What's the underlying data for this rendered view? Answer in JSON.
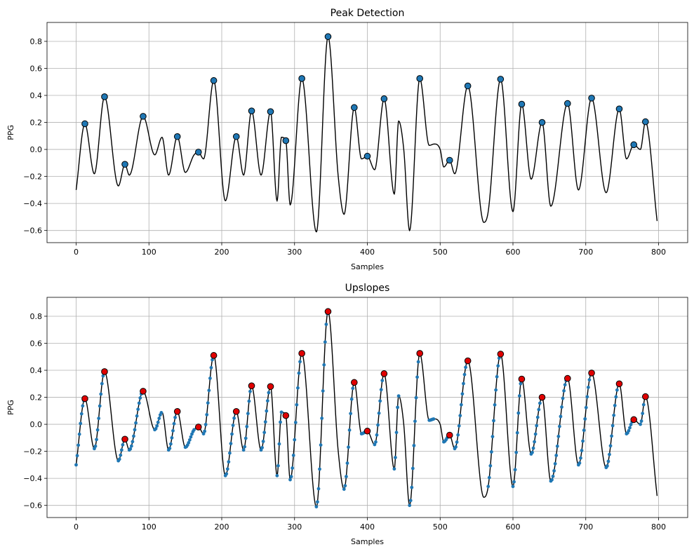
{
  "chart_data": [
    {
      "type": "line",
      "title": "Peak Detection",
      "xlabel": "Samples",
      "ylabel": "PPG",
      "xlim": [
        -40,
        840
      ],
      "ylim": [
        -0.69,
        0.94
      ],
      "xticks": [
        0,
        100,
        200,
        300,
        400,
        500,
        600,
        700,
        800
      ],
      "xtick_labels": [
        "0",
        "100",
        "200",
        "300",
        "400",
        "500",
        "600",
        "700",
        "800"
      ],
      "yticks": [
        0.8,
        0.6,
        0.4,
        0.2,
        0.0,
        -0.2,
        -0.4,
        -0.6
      ],
      "ytick_labels": [
        "0.8",
        "0.6",
        "0.4",
        "0.2",
        "0.0",
        "−0.2",
        "−0.4",
        "−0.6"
      ],
      "grid": true,
      "series": [
        {
          "role": "signal",
          "color": "#000000",
          "x": [
            0,
            12,
            25,
            39,
            58,
            67,
            73,
            92,
            108,
            118,
            127,
            139,
            150,
            162,
            168,
            175,
            189,
            205,
            220,
            230,
            241,
            254,
            267,
            276,
            282,
            288,
            294,
            310,
            330,
            346,
            360,
            368,
            382,
            392,
            400,
            410,
            423,
            437,
            443,
            450,
            458,
            472,
            485,
            492,
            500,
            505,
            513,
            520,
            538,
            560,
            566,
            583,
            600,
            612,
            625,
            640,
            652,
            675,
            690,
            708,
            728,
            746,
            756,
            766,
            775,
            782,
            798
          ],
          "y": [
            -0.3,
            0.19,
            -0.18,
            0.39,
            -0.27,
            -0.11,
            -0.19,
            0.245,
            -0.04,
            0.09,
            -0.19,
            0.095,
            -0.17,
            -0.04,
            -0.02,
            -0.07,
            0.51,
            -0.38,
            0.095,
            -0.19,
            0.285,
            -0.19,
            0.28,
            -0.38,
            0.09,
            0.065,
            -0.41,
            0.525,
            -0.61,
            0.835,
            -0.2,
            -0.48,
            0.31,
            -0.07,
            -0.05,
            -0.15,
            0.375,
            -0.33,
            0.21,
            0.0,
            -0.6,
            0.525,
            0.03,
            0.04,
            0.0,
            -0.13,
            -0.08,
            -0.18,
            0.47,
            -0.54,
            -0.46,
            0.52,
            -0.46,
            0.335,
            -0.22,
            0.2,
            -0.42,
            0.34,
            -0.3,
            0.38,
            -0.32,
            0.3,
            -0.07,
            0.035,
            0.0,
            0.205,
            -0.53
          ]
        },
        {
          "role": "peaks",
          "color": "#1f77b4",
          "x": [
            12,
            39,
            67,
            92,
            139,
            168,
            189,
            220,
            241,
            267,
            288,
            310,
            346,
            382,
            400,
            423,
            472,
            513,
            538,
            583,
            612,
            640,
            675,
            708,
            746,
            766,
            782
          ],
          "y": [
            0.19,
            0.39,
            -0.11,
            0.245,
            0.095,
            -0.02,
            0.51,
            0.095,
            0.285,
            0.28,
            0.065,
            0.525,
            0.835,
            0.31,
            -0.05,
            0.375,
            0.525,
            -0.08,
            0.47,
            0.52,
            0.335,
            0.2,
            0.34,
            0.38,
            0.3,
            0.035,
            0.205
          ]
        }
      ]
    },
    {
      "type": "line",
      "title": "Upslopes",
      "xlabel": "Samples",
      "ylabel": "PPG",
      "xlim": [
        -40,
        840
      ],
      "ylim": [
        -0.69,
        0.94
      ],
      "xticks": [
        0,
        100,
        200,
        300,
        400,
        500,
        600,
        700,
        800
      ],
      "xtick_labels": [
        "0",
        "100",
        "200",
        "300",
        "400",
        "500",
        "600",
        "700",
        "800"
      ],
      "yticks": [
        0.8,
        0.6,
        0.4,
        0.2,
        0.0,
        -0.2,
        -0.4,
        -0.6
      ],
      "ytick_labels": [
        "0.8",
        "0.6",
        "0.4",
        "0.2",
        "0.0",
        "−0.2",
        "−0.4",
        "−0.6"
      ],
      "grid": true,
      "series": [
        {
          "role": "signal",
          "color": "#000000",
          "x": [
            0,
            12,
            25,
            39,
            58,
            67,
            73,
            92,
            108,
            118,
            127,
            139,
            150,
            162,
            168,
            175,
            189,
            205,
            220,
            230,
            241,
            254,
            267,
            276,
            282,
            288,
            294,
            310,
            330,
            346,
            360,
            368,
            382,
            392,
            400,
            410,
            423,
            437,
            443,
            450,
            458,
            472,
            485,
            492,
            500,
            505,
            513,
            520,
            538,
            560,
            566,
            583,
            600,
            612,
            625,
            640,
            652,
            675,
            690,
            708,
            728,
            746,
            756,
            766,
            775,
            782,
            798
          ],
          "y": [
            -0.3,
            0.19,
            -0.18,
            0.39,
            -0.27,
            -0.11,
            -0.19,
            0.245,
            -0.04,
            0.09,
            -0.19,
            0.095,
            -0.17,
            -0.04,
            -0.02,
            -0.07,
            0.51,
            -0.38,
            0.095,
            -0.19,
            0.285,
            -0.19,
            0.28,
            -0.38,
            0.09,
            0.065,
            -0.41,
            0.525,
            -0.61,
            0.835,
            -0.2,
            -0.48,
            0.31,
            -0.07,
            -0.05,
            -0.15,
            0.375,
            -0.33,
            0.21,
            0.0,
            -0.6,
            0.525,
            0.03,
            0.04,
            0.0,
            -0.13,
            -0.08,
            -0.18,
            0.47,
            -0.54,
            -0.46,
            0.52,
            -0.46,
            0.335,
            -0.22,
            0.2,
            -0.42,
            0.34,
            -0.3,
            0.38,
            -0.32,
            0.3,
            -0.07,
            0.035,
            0.0,
            0.205,
            -0.53
          ]
        },
        {
          "role": "upslopes",
          "color": "#1f77b4",
          "segments": [
            [
              0,
              12
            ],
            [
              25,
              39
            ],
            [
              58,
              67
            ],
            [
              73,
              92
            ],
            [
              108,
              118
            ],
            [
              127,
              139
            ],
            [
              150,
              162
            ],
            [
              175,
              189
            ],
            [
              205,
              220
            ],
            [
              230,
              241
            ],
            [
              254,
              267
            ],
            [
              276,
              282
            ],
            [
              294,
              310
            ],
            [
              330,
              346
            ],
            [
              368,
              382
            ],
            [
              392,
              400
            ],
            [
              410,
              423
            ],
            [
              437,
              443
            ],
            [
              458,
              472
            ],
            [
              485,
              492
            ],
            [
              505,
              513
            ],
            [
              520,
              538
            ],
            [
              566,
              583
            ],
            [
              600,
              612
            ],
            [
              625,
              640
            ],
            [
              652,
              675
            ],
            [
              690,
              708
            ],
            [
              728,
              746
            ],
            [
              756,
              766
            ],
            [
              775,
              782
            ]
          ]
        },
        {
          "role": "peaks",
          "color": "#e00000",
          "x": [
            12,
            39,
            67,
            92,
            139,
            168,
            189,
            220,
            241,
            267,
            288,
            310,
            346,
            382,
            400,
            423,
            472,
            513,
            538,
            583,
            612,
            640,
            675,
            708,
            746,
            766,
            782
          ],
          "y": [
            0.19,
            0.39,
            -0.11,
            0.245,
            0.095,
            -0.02,
            0.51,
            0.095,
            0.285,
            0.28,
            0.065,
            0.525,
            0.835,
            0.31,
            -0.05,
            0.375,
            0.525,
            -0.08,
            0.47,
            0.52,
            0.335,
            0.2,
            0.34,
            0.38,
            0.3,
            0.035,
            0.205
          ]
        }
      ]
    }
  ]
}
